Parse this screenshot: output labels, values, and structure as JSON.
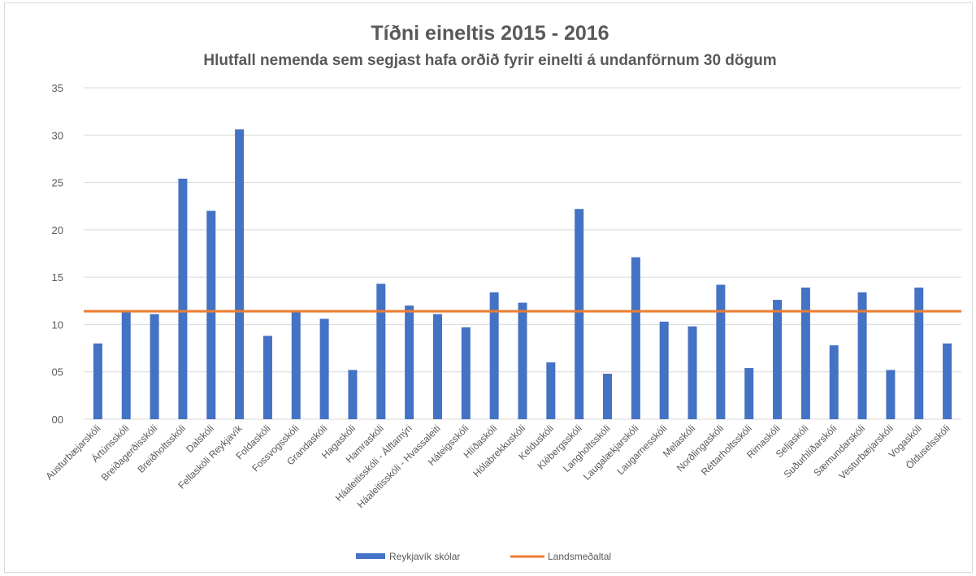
{
  "chart_data": {
    "type": "bar",
    "title": "Tíðni eineltis 2015 -  2016",
    "subtitle": "Hlutfall nemenda sem segjast hafa orðið fyrir einelti á undanförnum 30 dögum",
    "xlabel": "",
    "ylabel": "",
    "ylim": [
      0,
      35
    ],
    "yticks": [
      "00",
      "05",
      "10",
      "15",
      "20",
      "25",
      "30",
      "35"
    ],
    "yticks_values": [
      0,
      5,
      10,
      15,
      20,
      25,
      30,
      35
    ],
    "grid": true,
    "legend_position": "bottom",
    "categories": [
      "Austurbæjarskóli",
      "Ártúnsskóli",
      "Breiðagerðisskóli",
      "Breiðholtsskóli",
      "Dalskóli",
      "Fellaskóli Reykjavík",
      "Foldaskóli",
      "Fossvogsskóli",
      "Grandaskóli",
      "Hagaskóli",
      "Hamraskóli",
      "Háaleitisskóli - Álftamýri",
      "Háaleitisskóli - Hvassaleiti",
      "Háteigsskóli",
      "Hlíðaskóli",
      "Hólabrekkuskóli",
      "Kelduskóli",
      "Klébergsskóli",
      "Langholtsskóli",
      "Laugalækjarskóli",
      "Laugarnesskóli",
      "Melaskóli",
      "Norðlingaskóli",
      "Réttarholtsskóli",
      "Rimaskóli",
      "Seljaskóli",
      "Suðurhlíðarskóli",
      "Sæmundarskóli",
      "Vesturbæjarskóli",
      "Vogaskóli",
      "Ölduselsskóli"
    ],
    "series": [
      {
        "name": "Reykjavík skólar",
        "kind": "bar",
        "color": "#4472c4",
        "values": [
          8.0,
          11.5,
          11.1,
          25.4,
          22.0,
          30.6,
          8.8,
          11.4,
          10.6,
          5.2,
          14.3,
          12.0,
          11.1,
          9.7,
          13.4,
          12.3,
          6.0,
          22.2,
          4.8,
          17.1,
          10.3,
          9.8,
          14.2,
          5.4,
          12.6,
          13.9,
          7.8,
          13.4,
          5.2,
          13.9,
          8.0
        ]
      },
      {
        "name": "Landsmeðaltal",
        "kind": "line",
        "color": "#ed7d31",
        "values": [
          11.4,
          11.4,
          11.4,
          11.4,
          11.4,
          11.4,
          11.4,
          11.4,
          11.4,
          11.4,
          11.4,
          11.4,
          11.4,
          11.4,
          11.4,
          11.4,
          11.4,
          11.4,
          11.4,
          11.4,
          11.4,
          11.4,
          11.4,
          11.4,
          11.4,
          11.4,
          11.4,
          11.4,
          11.4,
          11.4,
          11.4
        ]
      }
    ]
  }
}
